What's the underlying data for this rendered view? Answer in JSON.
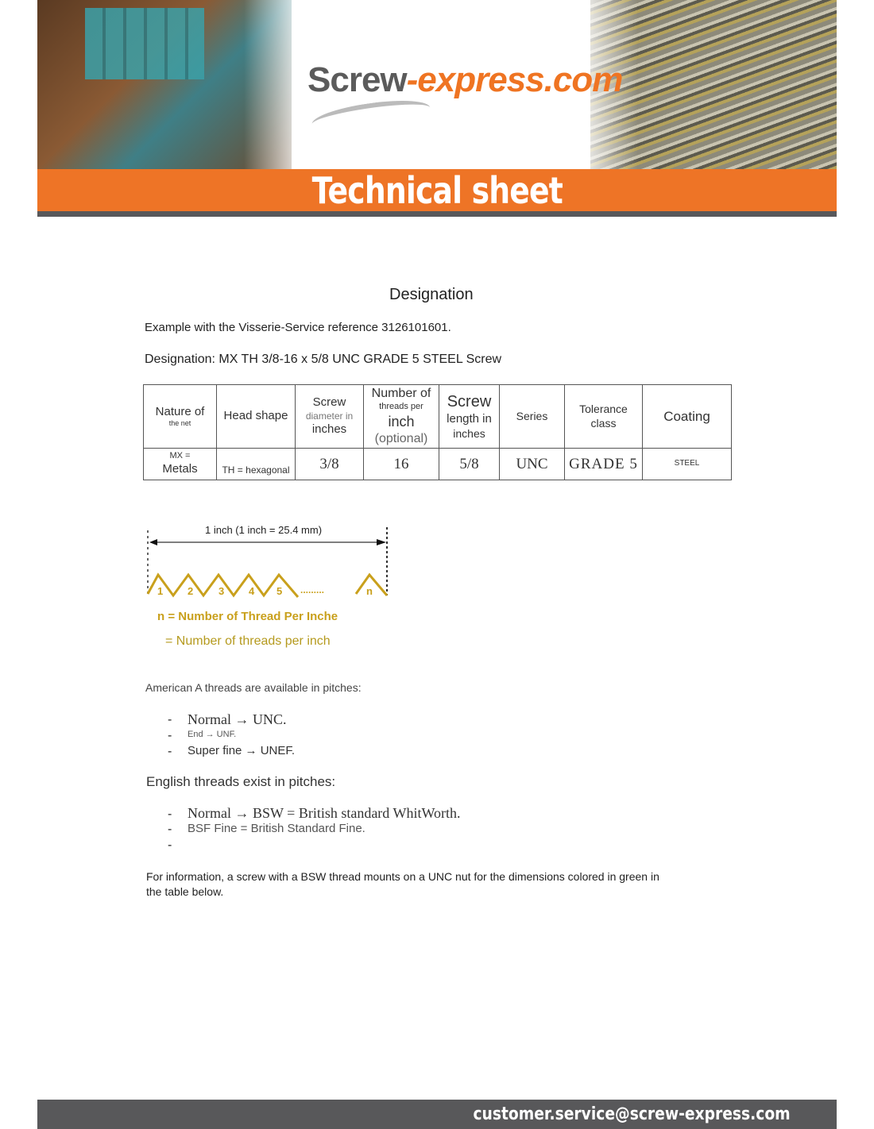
{
  "header": {
    "logo_part1": "Screw",
    "logo_part2": "-express.com",
    "banner_title": "Technical sheet"
  },
  "section_title": "Designation",
  "example_text": "Example with the Visserie-Service reference 3126101601.",
  "designation_text": "Designation: MX TH 3/8-16 x 5/8 UNC GRADE 5 STEEL Screw",
  "table": {
    "headers": [
      [
        "Nature of",
        "the net"
      ],
      [
        "Head shape"
      ],
      [
        "Screw",
        "diameter in",
        "inches"
      ],
      [
        "Number of",
        "threads per",
        "inch",
        "(optional)"
      ],
      [
        "Screw",
        "length in",
        "inches"
      ],
      [
        "Series"
      ],
      [
        "Tolerance",
        "class"
      ],
      [
        "Coating"
      ]
    ],
    "row": [
      [
        "MX =",
        "Metals"
      ],
      "TH = hexagonal",
      "3/8",
      "16",
      "5/8",
      "UNC",
      "GRADE 5",
      "STEEL"
    ]
  },
  "diagram": {
    "measure_label": "1 inch (1 inch = 25.4 mm)",
    "thread_labels": [
      "1",
      "2",
      "3",
      "4",
      "5",
      "n"
    ],
    "dots": ".........",
    "caption1": "n = Number of Thread Per Inche",
    "caption2": "= Number of threads per inch",
    "color": "#c9a01c"
  },
  "american": {
    "intro": "American A threads are available in pitches:",
    "items": [
      "Normal → UNC.",
      "End → UNF.",
      "Super fine → UNEF."
    ]
  },
  "english": {
    "intro": "English threads exist in pitches:",
    "items": [
      "Normal → BSW  = British standard WhitWorth.",
      "BSF Fine = British Standard Fine.",
      ""
    ]
  },
  "info_text_line1": "For information, a screw with a BSW thread mounts on a UNC nut for the dimensions colored in green in",
  "info_text_line2": "the table below.",
  "footer": {
    "email": "customer.service@screw-express.com"
  },
  "colors": {
    "orange": "#ee7426",
    "grey": "#58585a"
  }
}
